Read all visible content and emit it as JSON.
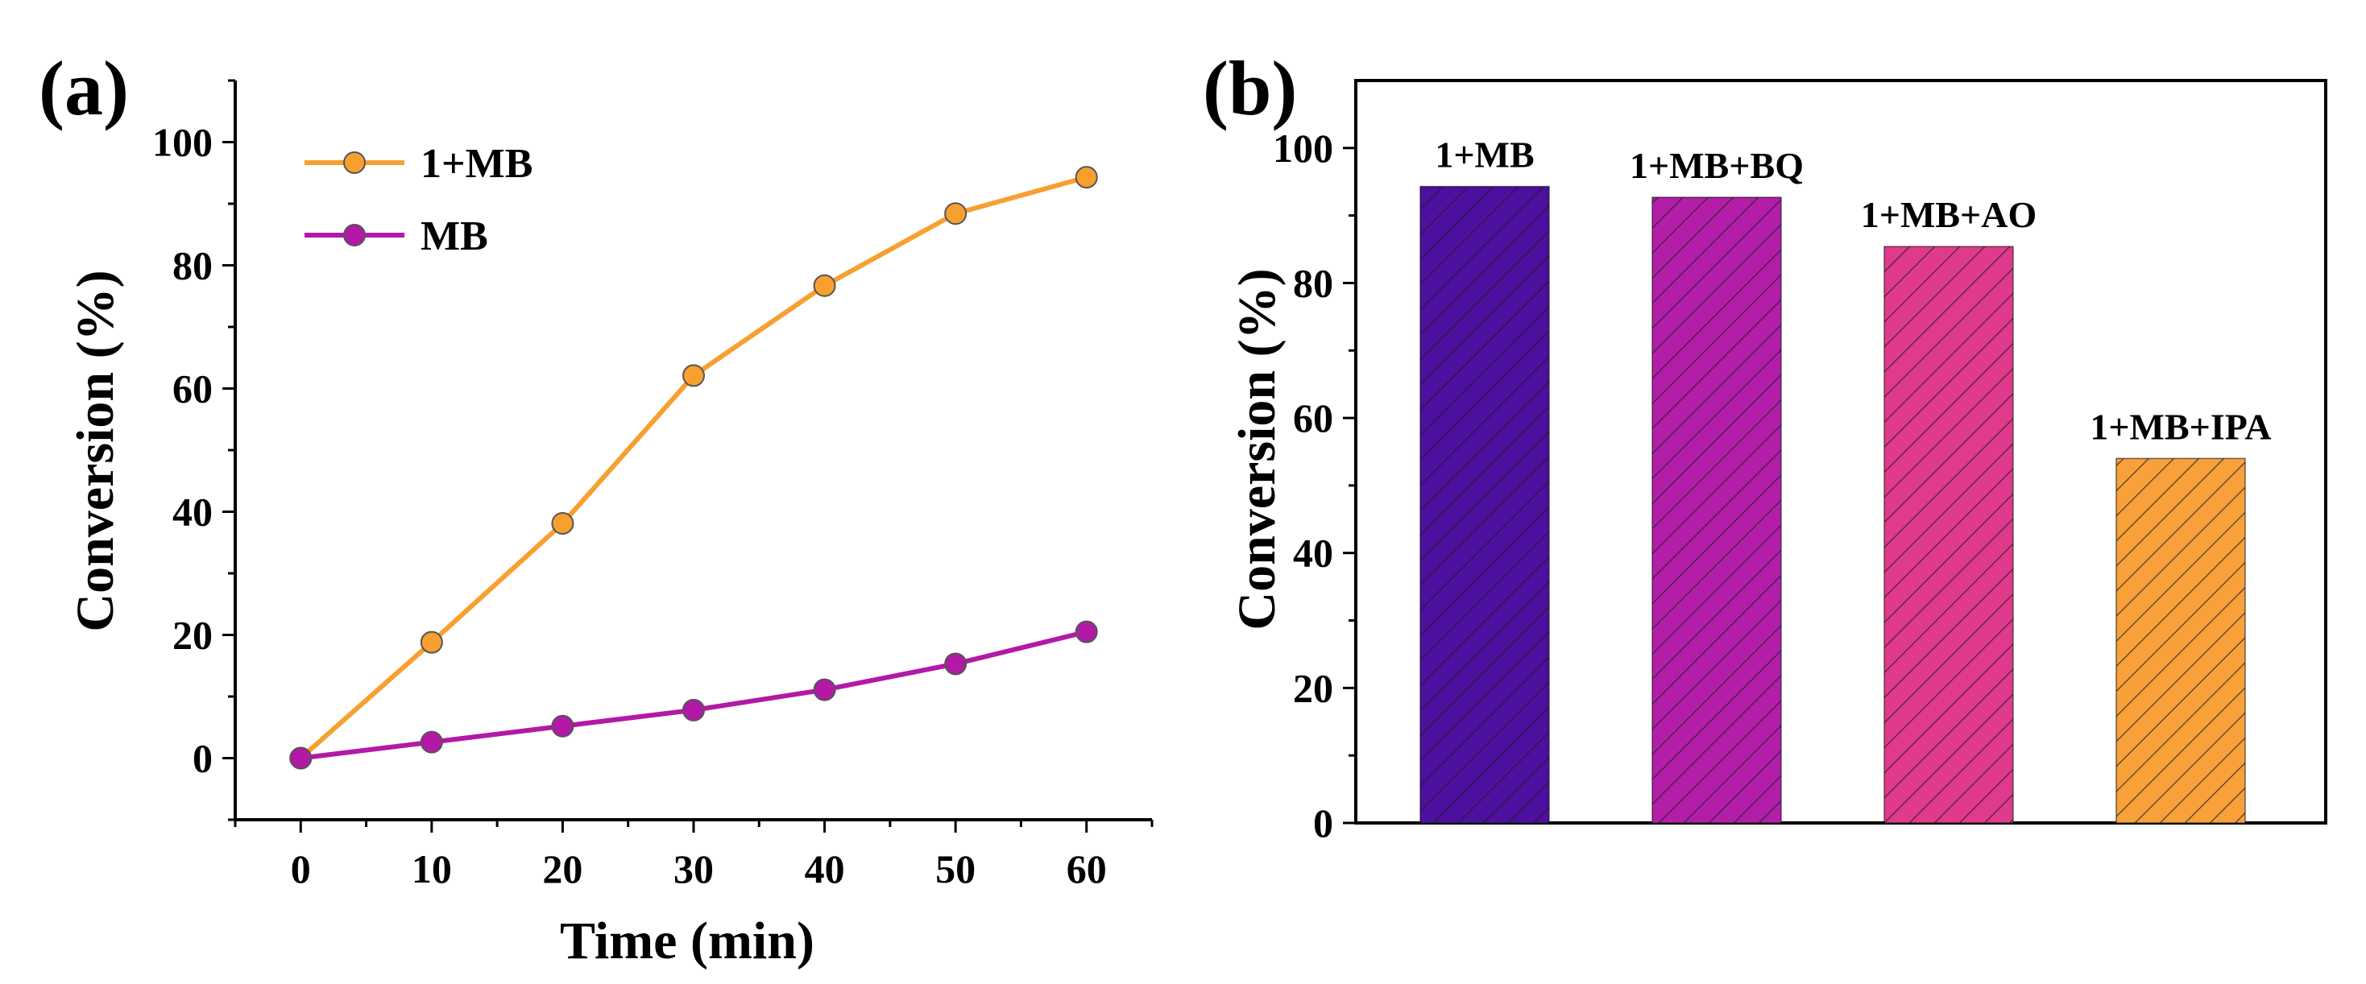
{
  "chart_data": [
    {
      "type": "line",
      "panel_label": "(a)",
      "xlabel": "Time (min)",
      "ylabel": "Conversion (%)",
      "xlim": [
        -5,
        65
      ],
      "ylim": [
        -10,
        110
      ],
      "xticks": [
        0,
        10,
        20,
        30,
        40,
        50,
        60
      ],
      "yticks": [
        0,
        20,
        40,
        60,
        80,
        100
      ],
      "legend_position": "top-left",
      "series": [
        {
          "name": "1+MB",
          "color": "#f7a030",
          "x": [
            0,
            10,
            20,
            30,
            40,
            50,
            60
          ],
          "values": [
            0,
            18.8,
            38.1,
            62.1,
            76.7,
            88.4,
            94.3
          ]
        },
        {
          "name": "MB",
          "color": "#b319a6",
          "x": [
            0,
            10,
            20,
            30,
            40,
            50,
            60
          ],
          "values": [
            0,
            2.6,
            5.2,
            7.8,
            11.1,
            15.3,
            20.5
          ]
        }
      ]
    },
    {
      "type": "bar",
      "panel_label": "(b)",
      "xlabel": "",
      "ylabel": "Conversion (%)",
      "ylim": [
        0,
        110
      ],
      "yticks": [
        0,
        20,
        40,
        60,
        80,
        100
      ],
      "categories": [
        "1+MB",
        "1+MB+BQ",
        "1+MB+AO",
        "1+MB+IPA"
      ],
      "values": [
        94.3,
        92.7,
        85.4,
        54.0
      ],
      "colors": [
        "#4c0f9e",
        "#b31ea8",
        "#df3a8b",
        "#f8a03a"
      ],
      "pattern": "diagonal-hatch"
    }
  ]
}
